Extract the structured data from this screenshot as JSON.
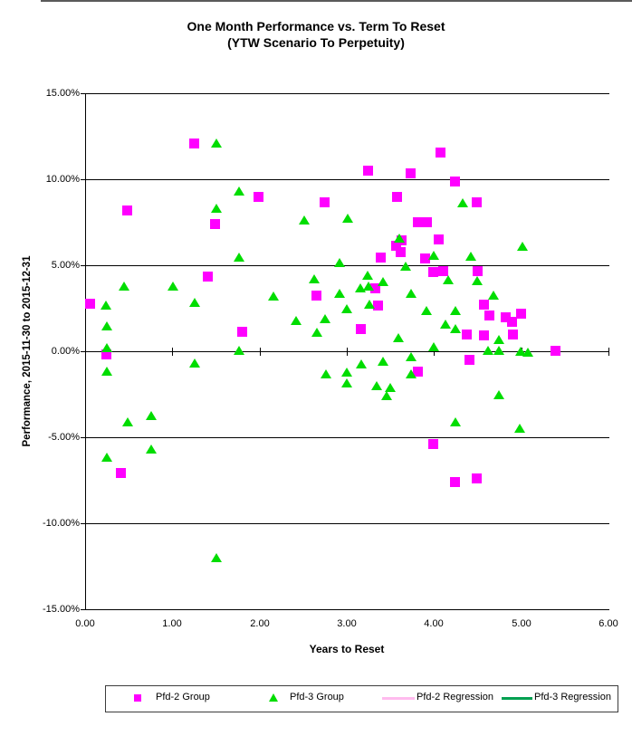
{
  "title": {
    "line1": "One Month Performance vs. Term To Reset",
    "line2": "(YTW Scenario To Perpetuity)"
  },
  "axes": {
    "x": {
      "label": "Years to Reset",
      "tick_labels": [
        "0.00",
        "1.00",
        "2.00",
        "3.00",
        "4.00",
        "5.00",
        "6.00"
      ],
      "tick_values": [
        0,
        1,
        2,
        3,
        4,
        5,
        6
      ]
    },
    "y": {
      "label": "Performance, 2015-11-30 to 2015-12-31",
      "tick_labels": [
        "15.00%",
        "10.00%",
        "5.00%",
        "0.00%",
        "-5.00%",
        "-10.00%",
        "-15.00%"
      ],
      "tick_values": [
        15,
        10,
        5,
        0,
        -5,
        -10,
        -15
      ]
    }
  },
  "legend": {
    "items": [
      {
        "label": "Pfd-2 Group",
        "marker": "square",
        "color": "#ff00ff"
      },
      {
        "label": "Pfd-3 Group",
        "marker": "triangle",
        "color": "#00dd00"
      },
      {
        "label": "Pfd-2 Regression",
        "marker": "line",
        "color": "#ffbbee"
      },
      {
        "label": "Pfd-3 Regression",
        "marker": "line",
        "color": "#00a050"
      }
    ]
  },
  "chart_data": {
    "type": "scatter",
    "title": "One Month Performance vs. Term To Reset (YTW Scenario To Perpetuity)",
    "xlabel": "Years to Reset",
    "ylabel": "Performance, 2015-11-30 to 2015-12-31",
    "xlim": [
      0,
      6
    ],
    "ylim": [
      -15,
      15
    ],
    "y_unit": "percent",
    "grid": true,
    "legend_position": "bottom",
    "series": [
      {
        "name": "Pfd-2 Group",
        "marker": "square",
        "color": "#ff00ff",
        "points": [
          [
            0.06,
            2.75
          ],
          [
            0.24,
            -0.2
          ],
          [
            0.41,
            -7.1
          ],
          [
            0.48,
            8.2
          ],
          [
            1.25,
            12.1
          ],
          [
            1.41,
            4.35
          ],
          [
            1.49,
            7.4
          ],
          [
            1.8,
            1.15
          ],
          [
            1.99,
            9.0
          ],
          [
            2.65,
            3.25
          ],
          [
            2.75,
            8.65
          ],
          [
            3.16,
            1.3
          ],
          [
            3.24,
            10.5
          ],
          [
            3.33,
            3.65
          ],
          [
            3.36,
            2.65
          ],
          [
            3.39,
            5.45
          ],
          [
            3.57,
            6.15
          ],
          [
            3.58,
            8.95
          ],
          [
            3.62,
            5.75
          ],
          [
            3.63,
            6.45
          ],
          [
            3.73,
            10.35
          ],
          [
            3.82,
            7.5
          ],
          [
            3.92,
            7.5
          ],
          [
            3.82,
            -1.2
          ],
          [
            3.9,
            5.4
          ],
          [
            3.99,
            4.6
          ],
          [
            3.99,
            -5.4
          ],
          [
            4.05,
            6.5
          ],
          [
            4.07,
            11.55
          ],
          [
            4.11,
            4.65
          ],
          [
            4.24,
            9.85
          ],
          [
            4.24,
            -7.6
          ],
          [
            4.38,
            1.0
          ],
          [
            4.41,
            -0.5
          ],
          [
            4.49,
            8.65
          ],
          [
            4.49,
            -7.4
          ],
          [
            4.5,
            4.65
          ],
          [
            4.57,
            2.7
          ],
          [
            4.57,
            0.9
          ],
          [
            4.64,
            2.1
          ],
          [
            4.82,
            1.95
          ],
          [
            4.89,
            1.7
          ],
          [
            4.91,
            1.0
          ],
          [
            5.0,
            2.2
          ],
          [
            5.39,
            0.05
          ]
        ]
      },
      {
        "name": "Pfd-3 Group",
        "marker": "triangle",
        "color": "#00dd00",
        "points": [
          [
            0.24,
            2.7
          ],
          [
            0.25,
            1.45
          ],
          [
            0.25,
            0.2
          ],
          [
            0.25,
            -1.15
          ],
          [
            0.25,
            -6.15
          ],
          [
            0.45,
            3.8
          ],
          [
            0.49,
            -4.1
          ],
          [
            0.76,
            -3.75
          ],
          [
            0.76,
            -5.7
          ],
          [
            1.01,
            3.8
          ],
          [
            1.26,
            2.85
          ],
          [
            1.26,
            -0.7
          ],
          [
            1.51,
            12.1
          ],
          [
            1.51,
            8.3
          ],
          [
            1.51,
            -12.0
          ],
          [
            1.76,
            9.3
          ],
          [
            1.76,
            5.5
          ],
          [
            1.76,
            0.05
          ],
          [
            2.16,
            3.2
          ],
          [
            2.42,
            1.8
          ],
          [
            2.51,
            7.65
          ],
          [
            2.63,
            4.2
          ],
          [
            2.66,
            1.1
          ],
          [
            2.75,
            1.9
          ],
          [
            2.76,
            -1.3
          ],
          [
            2.92,
            5.15
          ],
          [
            2.92,
            3.35
          ],
          [
            3.0,
            2.45
          ],
          [
            3.0,
            -1.2
          ],
          [
            3.0,
            -1.85
          ],
          [
            3.01,
            7.75
          ],
          [
            3.16,
            3.7
          ],
          [
            3.17,
            -0.75
          ],
          [
            3.24,
            4.4
          ],
          [
            3.25,
            3.8
          ],
          [
            3.26,
            2.75
          ],
          [
            3.34,
            -2.0
          ],
          [
            3.42,
            4.05
          ],
          [
            3.42,
            -0.6
          ],
          [
            3.46,
            -2.6
          ],
          [
            3.5,
            -2.1
          ],
          [
            3.59,
            0.8
          ],
          [
            3.6,
            6.6
          ],
          [
            3.67,
            4.95
          ],
          [
            3.74,
            3.35
          ],
          [
            3.74,
            -0.3
          ],
          [
            3.74,
            -1.3
          ],
          [
            3.91,
            2.35
          ],
          [
            4.0,
            5.6
          ],
          [
            4.0,
            0.25
          ],
          [
            4.13,
            1.6
          ],
          [
            4.16,
            4.15
          ],
          [
            4.25,
            2.35
          ],
          [
            4.25,
            1.3
          ],
          [
            4.25,
            -4.1
          ],
          [
            4.33,
            8.65
          ],
          [
            4.42,
            5.55
          ],
          [
            4.49,
            4.1
          ],
          [
            4.62,
            0.05
          ],
          [
            4.68,
            3.25
          ],
          [
            4.74,
            0.7
          ],
          [
            4.74,
            0.05
          ],
          [
            4.74,
            -2.5
          ],
          [
            4.98,
            -4.45
          ],
          [
            4.99,
            0.0
          ],
          [
            5.01,
            6.1
          ],
          [
            5.08,
            -0.05
          ]
        ]
      },
      {
        "name": "Pfd-2 Regression",
        "marker": "line",
        "color": "#ffbbee",
        "points": [],
        "note": "legend entry only; line not visibly distinguishable in plot"
      },
      {
        "name": "Pfd-3 Regression",
        "marker": "line",
        "color": "#00a050",
        "points": [],
        "note": "legend entry only; line not visibly distinguishable in plot"
      }
    ]
  }
}
